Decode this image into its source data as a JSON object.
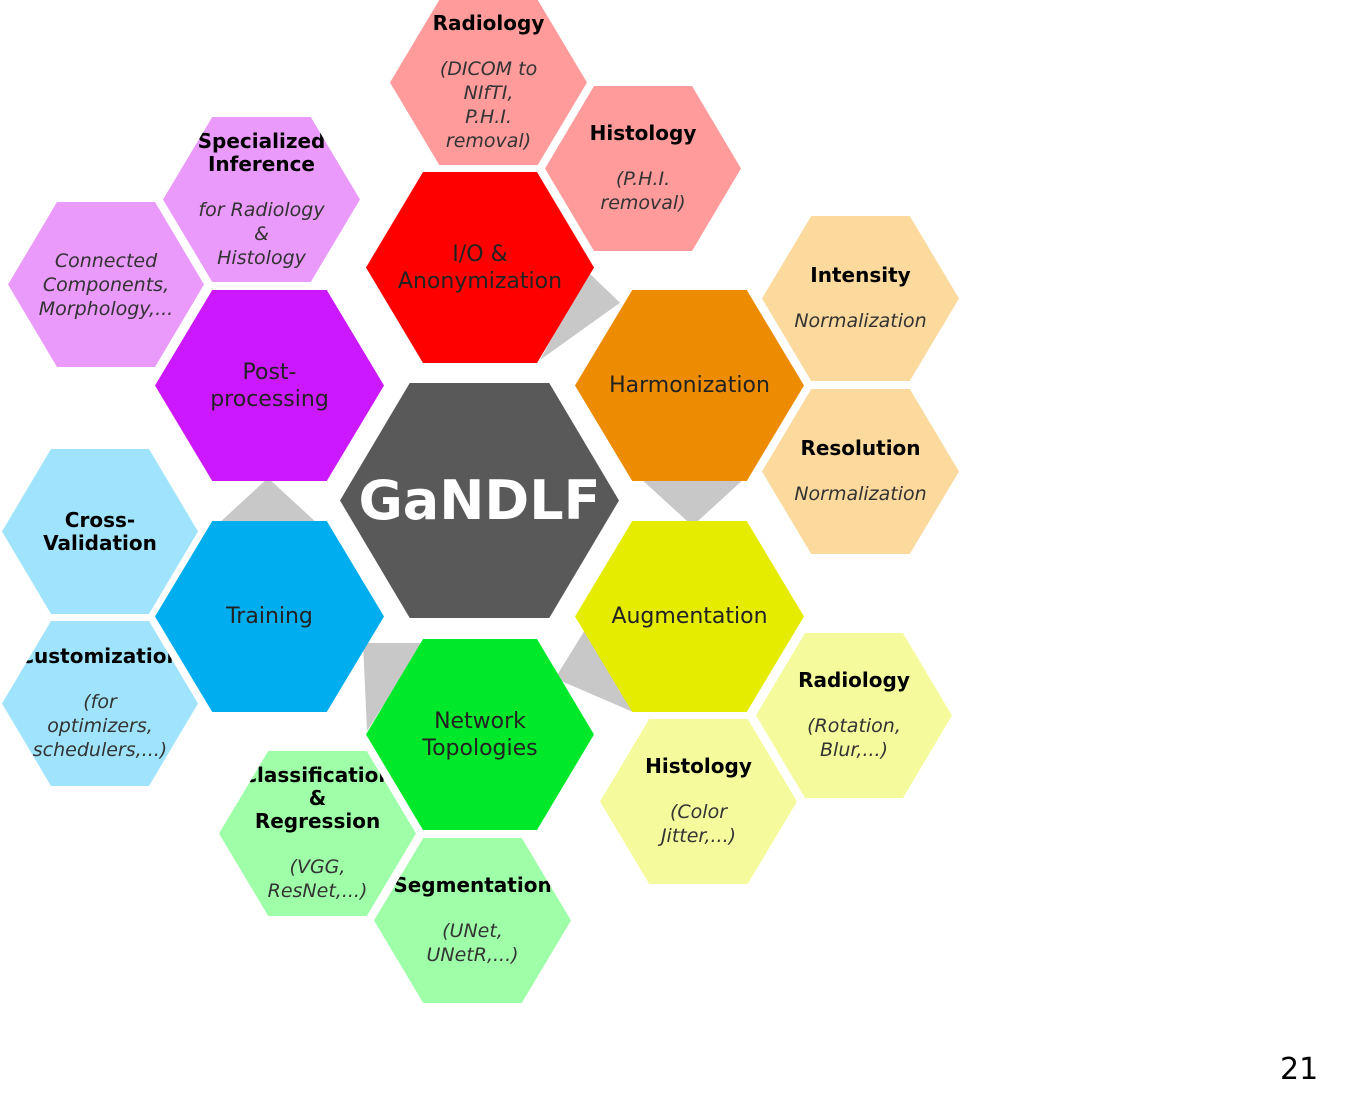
{
  "center": {
    "label": "GaNDLF",
    "color": "#595959"
  },
  "modules": [
    {
      "id": "io",
      "label": "I/O   &\nAnonymization",
      "color": "#ff0000"
    },
    {
      "id": "harmonization",
      "label": "Harmonization",
      "color": "#ed8c00"
    },
    {
      "id": "augmentation",
      "label": "Augmentation",
      "color": "#e6ec00"
    },
    {
      "id": "network",
      "label": "Network\nTopologies",
      "color": "#00e82a"
    },
    {
      "id": "training",
      "label": "Training",
      "color": "#00aeef"
    },
    {
      "id": "postprocessing",
      "label": "Post-\nprocessing",
      "color": "#cc18ff"
    }
  ],
  "leaves": [
    {
      "id": "radiology-io",
      "title": "Radiology",
      "subtitle": "(DICOM to NIfTI,\nP.H.I. removal)",
      "color": "#ff9b9b"
    },
    {
      "id": "histology-io",
      "title": "Histology",
      "subtitle": "(P.H.I. removal)",
      "color": "#ff9b9b"
    },
    {
      "id": "intensity",
      "title": "Intensity",
      "subtitle": "Normalization",
      "color": "#fcd99c"
    },
    {
      "id": "resolution",
      "title": "Resolution",
      "subtitle": "Normalization",
      "color": "#fcd99c"
    },
    {
      "id": "radiology-aug",
      "title": "Radiology",
      "subtitle": "(Rotation, Blur,...)",
      "color": "#f5fb9c"
    },
    {
      "id": "histology-aug",
      "title": "Histology",
      "subtitle": "(Color Jitter,...)",
      "color": "#f5fb9c"
    },
    {
      "id": "classification",
      "title": "Classification &\nRegression",
      "subtitle": "(VGG, ResNet,...)",
      "color": "#9effa8"
    },
    {
      "id": "segmentation",
      "title": "Segmentation",
      "subtitle": "(UNet, UNetR,...)",
      "color": "#9effa8"
    },
    {
      "id": "cross-validation",
      "title": "Cross-Validation",
      "subtitle": "",
      "color": "#9fe4fc"
    },
    {
      "id": "customization",
      "title": "Customization",
      "subtitle": "(for optimizers,\nschedulers,...)",
      "color": "#9fe4fc"
    },
    {
      "id": "specialized-inference",
      "title": "Specialized\nInference",
      "subtitle": "for Radiology &\nHistology",
      "color": "#e99afa"
    },
    {
      "id": "connected",
      "title": "",
      "subtitle": "Connected\nComponents,\nMorphology,...",
      "color": "#e99afa"
    }
  ],
  "page_number": "21"
}
